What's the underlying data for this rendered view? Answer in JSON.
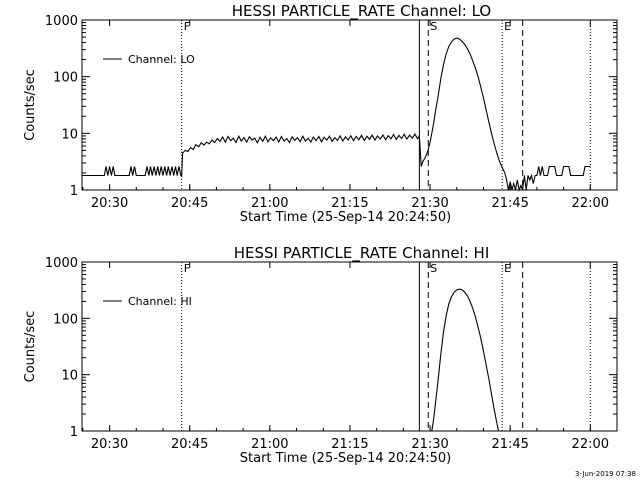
{
  "timestamp": "3-Jun-2019 07:38",
  "chart_data": [
    {
      "type": "line",
      "title": "HESSI PARTICLE_RATE Channel: LO",
      "xlabel": "Start Time (25-Sep-14 20:24:50)",
      "ylabel": "Counts/sec",
      "yscale": "log",
      "ylim": [
        1,
        1000
      ],
      "xlim": [
        "20:24:50",
        "22:05:00"
      ],
      "xticks": [
        "20:30",
        "20:45",
        "21:00",
        "21:15",
        "21:30",
        "21:45",
        "22:00"
      ],
      "yticks": [
        "1",
        "10",
        "100",
        "1000"
      ],
      "legend": {
        "label": "Channel: LO",
        "position": "top-left"
      },
      "vlines": [
        {
          "time": "20:43:30",
          "style": "dotted",
          "label": "F"
        },
        {
          "time": "21:28:00",
          "style": "solid",
          "label": ""
        },
        {
          "time": "21:29:40",
          "style": "dashed",
          "label": "S"
        },
        {
          "time": "21:43:30",
          "style": "dotted",
          "label": "E"
        },
        {
          "time": "21:47:20",
          "style": "dashed",
          "label": ""
        },
        {
          "time": "22:00:00",
          "style": "dotted",
          "label": ""
        }
      ],
      "series": [
        {
          "name": "Channel: LO",
          "points": [
            [
              "20:24:50",
              1.8
            ],
            [
              "20:29:00",
              1.8
            ],
            [
              "20:29:20",
              2.6
            ],
            [
              "20:29:40",
              1.8
            ],
            [
              "20:30:00",
              2.6
            ],
            [
              "20:30:20",
              1.8
            ],
            [
              "20:30:40",
              2.6
            ],
            [
              "20:31:00",
              1.8
            ],
            [
              "20:33:40",
              1.8
            ],
            [
              "20:34:00",
              2.6
            ],
            [
              "20:34:20",
              1.8
            ],
            [
              "20:34:40",
              2.6
            ],
            [
              "20:35:00",
              1.8
            ],
            [
              "20:36:40",
              1.8
            ],
            [
              "20:37:00",
              2.6
            ],
            [
              "20:37:20",
              1.8
            ],
            [
              "20:37:40",
              2.6
            ],
            [
              "20:38:00",
              1.8
            ],
            [
              "20:38:20",
              2.6
            ],
            [
              "20:38:40",
              1.8
            ],
            [
              "20:39:00",
              2.6
            ],
            [
              "20:39:20",
              1.8
            ],
            [
              "20:39:40",
              2.6
            ],
            [
              "20:40:00",
              1.8
            ],
            [
              "20:40:20",
              2.6
            ],
            [
              "20:40:40",
              1.8
            ],
            [
              "20:41:00",
              2.6
            ],
            [
              "20:41:20",
              1.8
            ],
            [
              "20:41:40",
              2.6
            ],
            [
              "20:42:00",
              1.8
            ],
            [
              "20:42:20",
              2.6
            ],
            [
              "20:42:40",
              1.8
            ],
            [
              "20:43:00",
              2.6
            ],
            [
              "20:43:20",
              1.8
            ],
            [
              "20:43:30",
              1.8
            ],
            [
              "20:43:40",
              4.5
            ],
            [
              "20:44:10",
              5.0
            ],
            [
              "20:44:40",
              4.8
            ],
            [
              "20:45:10",
              5.6
            ],
            [
              "20:45:40",
              5.2
            ],
            [
              "20:46:10",
              6.3
            ],
            [
              "20:46:40",
              5.8
            ],
            [
              "20:47:10",
              6.8
            ],
            [
              "20:47:40",
              6.2
            ],
            [
              "20:48:10",
              7.0
            ],
            [
              "20:48:40",
              6.5
            ],
            [
              "20:49:10",
              7.6
            ],
            [
              "20:49:40",
              6.9
            ],
            [
              "20:50:10",
              8.1
            ],
            [
              "20:50:40",
              7.2
            ],
            [
              "20:51:10",
              8.6
            ],
            [
              "20:51:40",
              7.0
            ],
            [
              "20:52:10",
              8.8
            ],
            [
              "20:52:40",
              7.4
            ],
            [
              "20:53:10",
              8.2
            ],
            [
              "20:53:40",
              6.9
            ],
            [
              "20:54:10",
              8.9
            ],
            [
              "20:54:40",
              7.3
            ],
            [
              "20:55:10",
              8.4
            ],
            [
              "20:55:40",
              7.0
            ],
            [
              "20:56:10",
              8.7
            ],
            [
              "20:56:40",
              7.6
            ],
            [
              "20:57:10",
              8.2
            ],
            [
              "20:57:40",
              6.8
            ],
            [
              "20:58:10",
              8.5
            ],
            [
              "20:58:40",
              7.2
            ],
            [
              "20:59:10",
              8.9
            ],
            [
              "20:59:40",
              7.1
            ],
            [
              "21:00:10",
              8.3
            ],
            [
              "21:00:40",
              7.4
            ],
            [
              "21:01:10",
              8.6
            ],
            [
              "21:01:40",
              7.0
            ],
            [
              "21:02:10",
              8.8
            ],
            [
              "21:02:40",
              7.3
            ],
            [
              "21:03:10",
              8.1
            ],
            [
              "21:03:40",
              6.9
            ],
            [
              "21:04:10",
              8.7
            ],
            [
              "21:04:40",
              7.5
            ],
            [
              "21:05:10",
              8.4
            ],
            [
              "21:05:40",
              7.1
            ],
            [
              "21:06:10",
              8.9
            ],
            [
              "21:06:40",
              7.3
            ],
            [
              "21:07:10",
              8.2
            ],
            [
              "21:07:40",
              7.0
            ],
            [
              "21:08:10",
              8.6
            ],
            [
              "21:08:40",
              7.4
            ],
            [
              "21:09:10",
              8.8
            ],
            [
              "21:09:40",
              7.1
            ],
            [
              "21:10:10",
              8.5
            ],
            [
              "21:10:40",
              7.6
            ],
            [
              "21:11:10",
              8.9
            ],
            [
              "21:11:40",
              7.2
            ],
            [
              "21:12:10",
              8.4
            ],
            [
              "21:12:40",
              7.5
            ],
            [
              "21:13:10",
              9.0
            ],
            [
              "21:13:40",
              7.3
            ],
            [
              "21:14:10",
              8.7
            ],
            [
              "21:14:40",
              7.6
            ],
            [
              "21:15:10",
              9.1
            ],
            [
              "21:15:40",
              7.4
            ],
            [
              "21:16:10",
              8.8
            ],
            [
              "21:16:40",
              7.7
            ],
            [
              "21:17:10",
              9.2
            ],
            [
              "21:17:40",
              7.5
            ],
            [
              "21:18:10",
              8.9
            ],
            [
              "21:18:40",
              7.8
            ],
            [
              "21:19:10",
              9.3
            ],
            [
              "21:19:40",
              7.6
            ],
            [
              "21:20:10",
              9.0
            ],
            [
              "21:20:40",
              7.9
            ],
            [
              "21:21:10",
              9.4
            ],
            [
              "21:21:40",
              7.7
            ],
            [
              "21:22:10",
              9.1
            ],
            [
              "21:22:40",
              8.0
            ],
            [
              "21:23:10",
              9.5
            ],
            [
              "21:23:40",
              7.8
            ],
            [
              "21:24:10",
              9.2
            ],
            [
              "21:24:40",
              8.1
            ],
            [
              "21:25:10",
              9.6
            ],
            [
              "21:25:40",
              7.9
            ],
            [
              "21:26:10",
              9.3
            ],
            [
              "21:26:40",
              8.2
            ],
            [
              "21:27:10",
              9.7
            ],
            [
              "21:27:40",
              8.0
            ],
            [
              "21:28:00",
              9.0
            ],
            [
              "21:28:20",
              2.6
            ],
            [
              "21:28:40",
              3.2
            ],
            [
              "21:29:00",
              3.6
            ],
            [
              "21:29:20",
              4.2
            ],
            [
              "21:29:40",
              5.2
            ],
            [
              "21:30:00",
              7.0
            ],
            [
              "21:30:20",
              10
            ],
            [
              "21:30:40",
              15
            ],
            [
              "21:31:00",
              24
            ],
            [
              "21:31:30",
              45
            ],
            [
              "21:32:00",
              90
            ],
            [
              "21:32:30",
              160
            ],
            [
              "21:33:00",
              250
            ],
            [
              "21:33:30",
              340
            ],
            [
              "21:34:00",
              410
            ],
            [
              "21:34:30",
              460
            ],
            [
              "21:35:00",
              480
            ],
            [
              "21:35:30",
              460
            ],
            [
              "21:36:00",
              420
            ],
            [
              "21:36:30",
              370
            ],
            [
              "21:37:00",
              310
            ],
            [
              "21:37:30",
              250
            ],
            [
              "21:38:00",
              190
            ],
            [
              "21:38:30",
              140
            ],
            [
              "21:39:00",
              100
            ],
            [
              "21:39:30",
              65
            ],
            [
              "21:40:00",
              42
            ],
            [
              "21:40:30",
              26
            ],
            [
              "21:41:00",
              16
            ],
            [
              "21:41:30",
              10
            ],
            [
              "21:42:00",
              6.5
            ],
            [
              "21:42:30",
              4.5
            ],
            [
              "21:43:00",
              3.2
            ],
            [
              "21:43:30",
              2.5
            ],
            [
              "21:44:00",
              2.0
            ],
            [
              "21:44:20",
              1.5
            ],
            [
              "21:44:40",
              1.0
            ],
            [
              "21:45:00",
              1.4
            ],
            [
              "21:45:20",
              1.0
            ],
            [
              "21:45:40",
              1.3
            ],
            [
              "21:46:00",
              1.0
            ],
            [
              "21:46:20",
              1.5
            ],
            [
              "21:46:40",
              1.0
            ],
            [
              "21:47:00",
              1.2
            ],
            [
              "21:47:20",
              1.0
            ],
            [
              "21:47:40",
              1.8
            ],
            [
              "21:48:00",
              1.0
            ],
            [
              "21:48:20",
              1.8
            ],
            [
              "21:48:40",
              1.5
            ],
            [
              "21:49:00",
              1.8
            ],
            [
              "21:49:20",
              1.3
            ],
            [
              "21:49:40",
              1.8
            ],
            [
              "21:50:00",
              1.8
            ],
            [
              "21:50:20",
              2.6
            ],
            [
              "21:50:40",
              1.8
            ],
            [
              "21:51:00",
              2.6
            ],
            [
              "21:51:20",
              1.8
            ],
            [
              "21:52:00",
              1.8
            ],
            [
              "21:52:20",
              2.6
            ],
            [
              "21:53:20",
              2.6
            ],
            [
              "21:53:40",
              1.8
            ],
            [
              "21:54:40",
              1.8
            ],
            [
              "21:55:00",
              2.6
            ],
            [
              "21:56:00",
              2.6
            ],
            [
              "21:56:20",
              1.8
            ],
            [
              "21:58:40",
              1.8
            ],
            [
              "21:59:00",
              2.6
            ],
            [
              "22:00:00",
              2.6
            ]
          ]
        }
      ]
    },
    {
      "type": "line",
      "title": "HESSI PARTICLE_RATE Channel: HI",
      "xlabel": "Start Time (25-Sep-14 20:24:50)",
      "ylabel": "Counts/sec",
      "yscale": "log",
      "ylim": [
        1,
        1000
      ],
      "xlim": [
        "20:24:50",
        "22:05:00"
      ],
      "xticks": [
        "20:30",
        "20:45",
        "21:00",
        "21:15",
        "21:30",
        "21:45",
        "22:00"
      ],
      "yticks": [
        "1",
        "10",
        "100",
        "1000"
      ],
      "legend": {
        "label": "Channel: HI",
        "position": "top-left"
      },
      "vlines": [
        {
          "time": "20:43:30",
          "style": "dotted",
          "label": "F"
        },
        {
          "time": "21:28:00",
          "style": "solid",
          "label": ""
        },
        {
          "time": "21:29:40",
          "style": "dashed",
          "label": "S"
        },
        {
          "time": "21:43:30",
          "style": "dotted",
          "label": "E"
        },
        {
          "time": "21:47:20",
          "style": "dashed",
          "label": ""
        },
        {
          "time": "22:00:00",
          "style": "dotted",
          "label": ""
        }
      ],
      "series": [
        {
          "name": "Channel: HI",
          "points": [
            [
              "21:30:20",
              1.0
            ],
            [
              "21:30:40",
              1.6
            ],
            [
              "21:31:00",
              3.0
            ],
            [
              "21:31:30",
              8
            ],
            [
              "21:32:00",
              22
            ],
            [
              "21:32:30",
              55
            ],
            [
              "21:33:00",
              110
            ],
            [
              "21:33:30",
              180
            ],
            [
              "21:34:00",
              240
            ],
            [
              "21:34:30",
              290
            ],
            [
              "21:35:00",
              320
            ],
            [
              "21:35:30",
              330
            ],
            [
              "21:36:00",
              320
            ],
            [
              "21:36:30",
              290
            ],
            [
              "21:37:00",
              250
            ],
            [
              "21:37:30",
              200
            ],
            [
              "21:38:00",
              150
            ],
            [
              "21:38:30",
              105
            ],
            [
              "21:39:00",
              70
            ],
            [
              "21:39:30",
              44
            ],
            [
              "21:40:00",
              26
            ],
            [
              "21:40:30",
              15
            ],
            [
              "21:41:00",
              8.5
            ],
            [
              "21:41:30",
              4.5
            ],
            [
              "21:42:00",
              2.4
            ],
            [
              "21:42:30",
              1.4
            ],
            [
              "21:42:50",
              1.0
            ]
          ]
        }
      ]
    }
  ]
}
